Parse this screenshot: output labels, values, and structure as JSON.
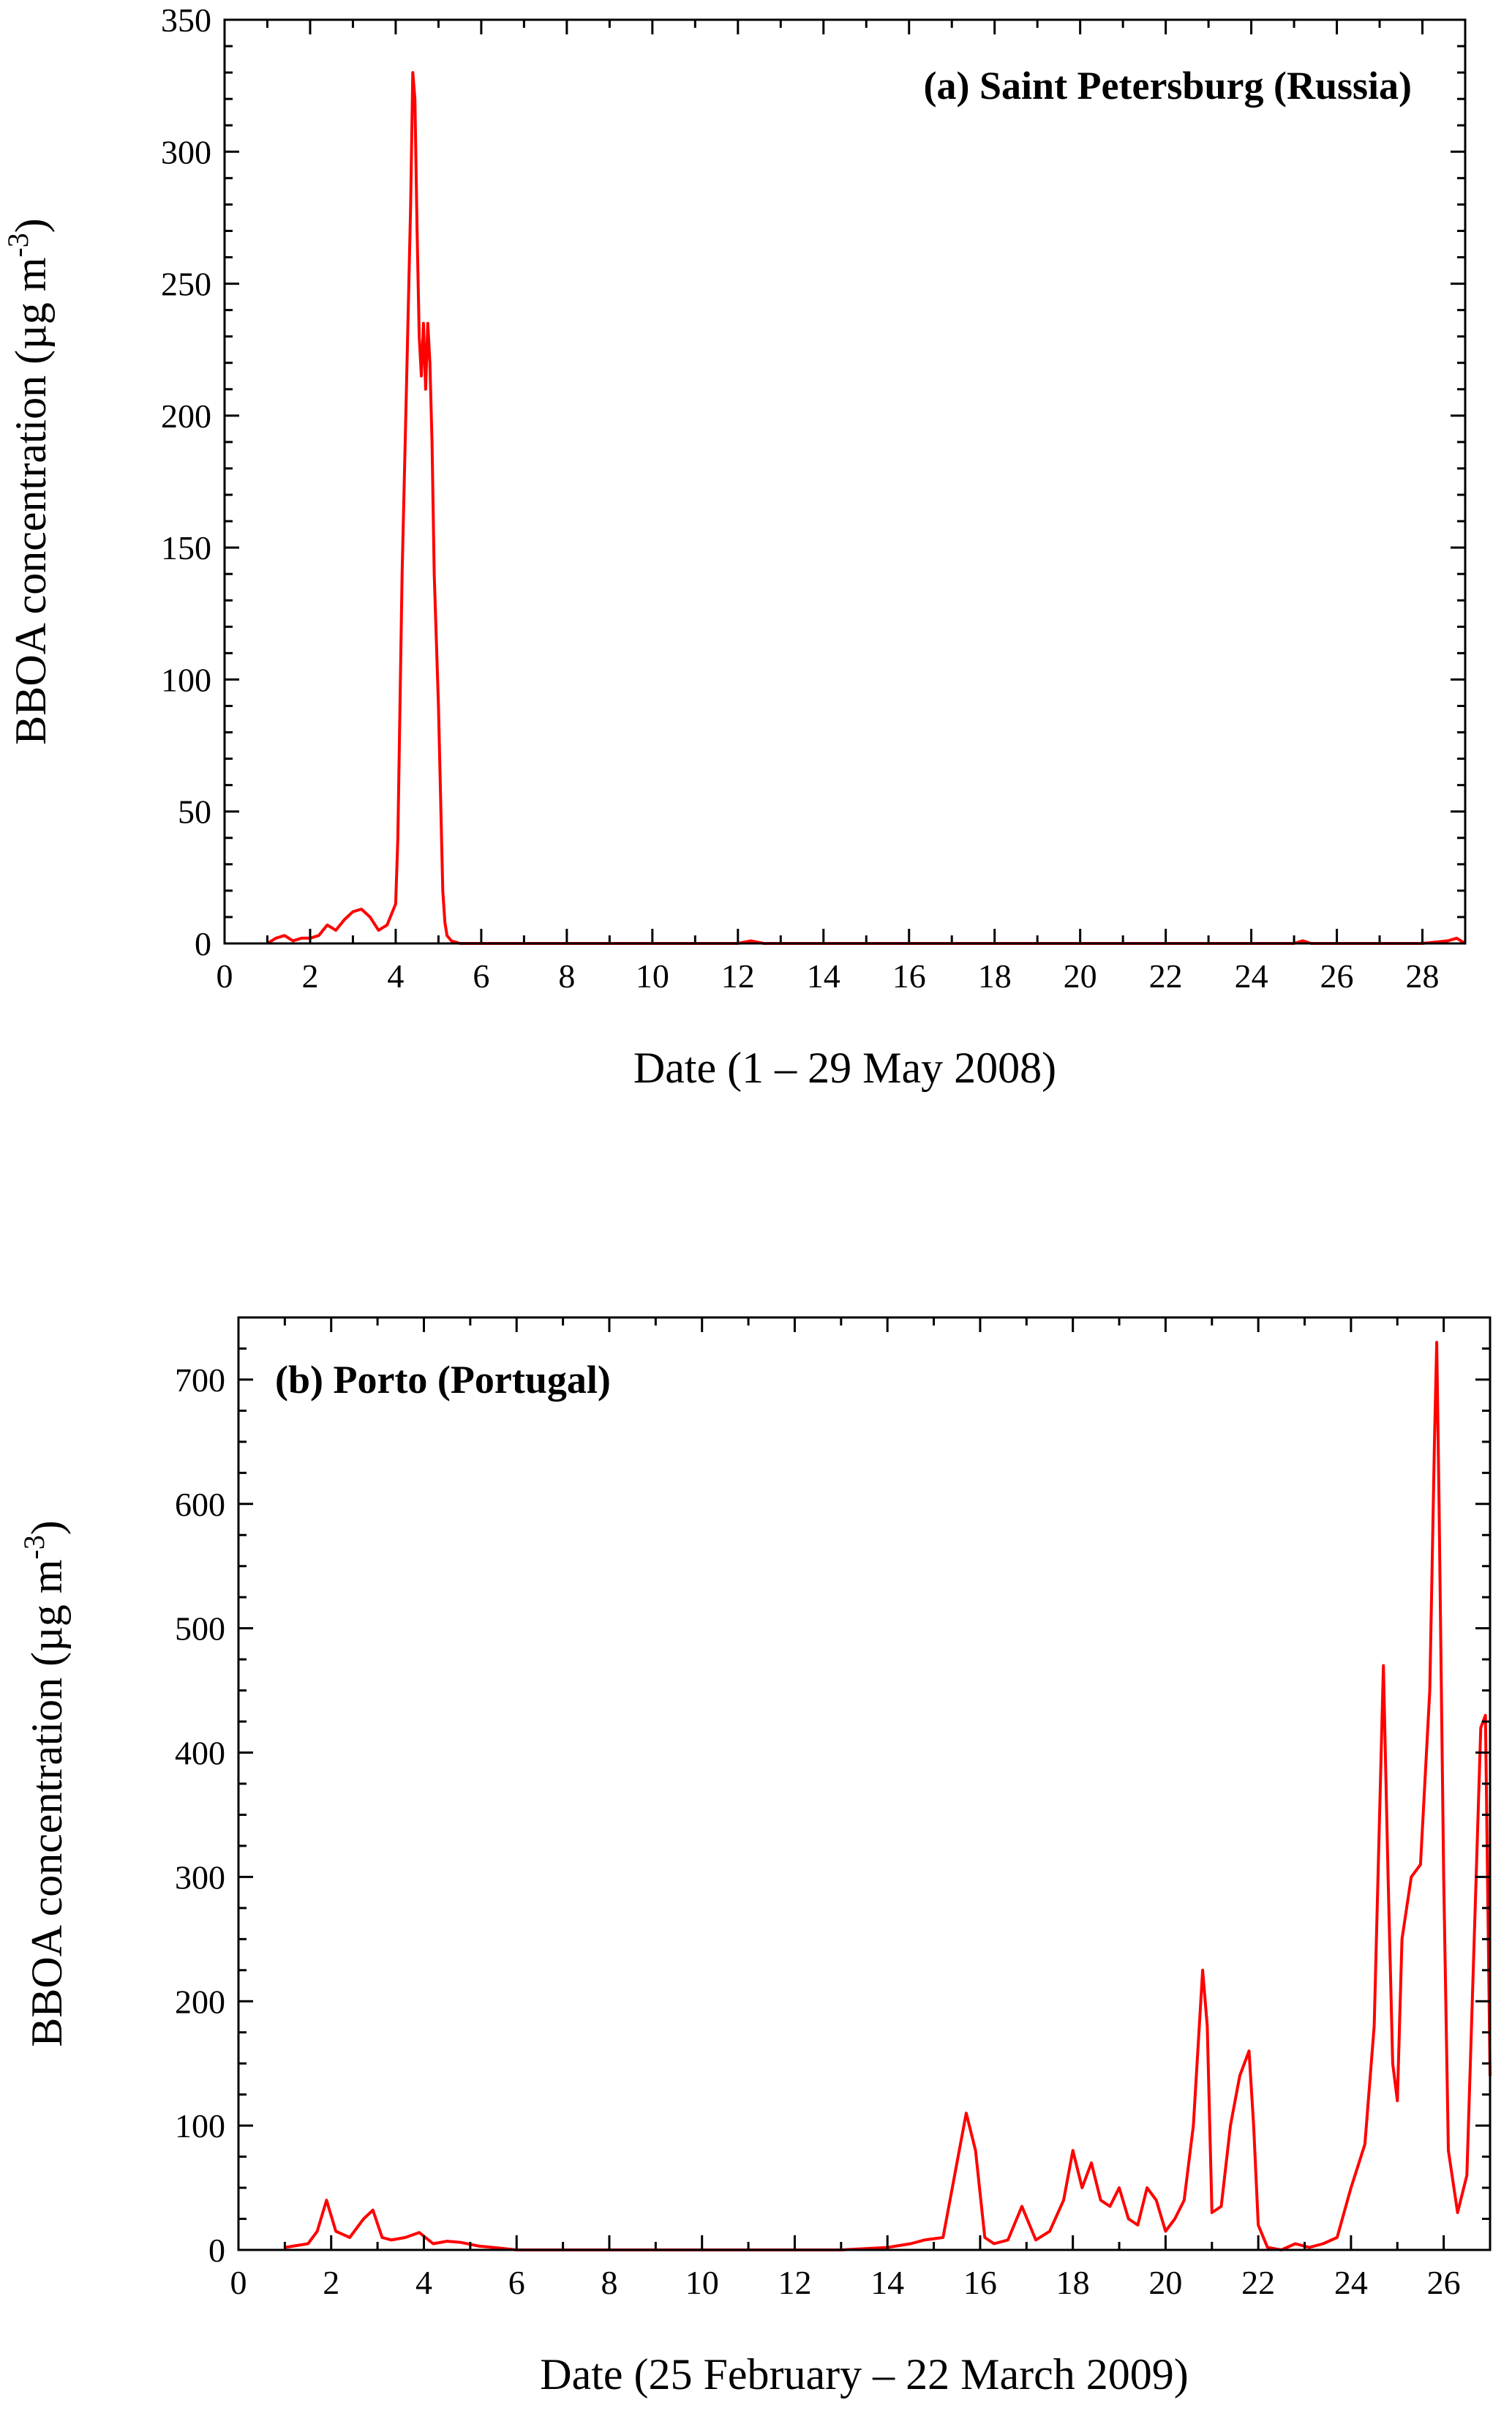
{
  "colors": {
    "series": "#ff0000",
    "axis": "#000000",
    "background": "#ffffff"
  },
  "chart_data": [
    {
      "type": "line",
      "title": "(a)  Saint Petersburg (Russia)",
      "xlabel": "Date (1 – 29 May 2008)",
      "ylabel_main": "BBOA concentration (µg  m",
      "ylabel_sup": "-3",
      "ylabel_close": ")",
      "xlim": [
        0,
        29
      ],
      "ylim": [
        0,
        350
      ],
      "x_ticks": [
        0,
        2,
        4,
        6,
        8,
        10,
        12,
        14,
        16,
        18,
        20,
        22,
        24,
        26,
        28
      ],
      "y_ticks": [
        0,
        50,
        100,
        150,
        200,
        250,
        300,
        350
      ],
      "grid": false,
      "series": [
        {
          "x": [
            1.0,
            1.2,
            1.4,
            1.6,
            1.8,
            2.0,
            2.2,
            2.4,
            2.6,
            2.8,
            3.0,
            3.2,
            3.4,
            3.6,
            3.8,
            4.0,
            4.05,
            4.15,
            4.25,
            4.35,
            4.4,
            4.45,
            4.5,
            4.55,
            4.6,
            4.65,
            4.7,
            4.75,
            4.8,
            4.85,
            4.9,
            5.0,
            5.1,
            5.15,
            5.2,
            5.3,
            5.5,
            6.0,
            7,
            8,
            9,
            10,
            11,
            12,
            12.3,
            12.6,
            13,
            14,
            15,
            16,
            17,
            18,
            19,
            20,
            21,
            22,
            23,
            24,
            25,
            25.2,
            25.4,
            26,
            27,
            28,
            28.6,
            28.8,
            29.0
          ],
          "y": [
            0,
            2,
            3,
            1,
            2,
            2,
            3,
            7,
            5,
            9,
            12,
            13,
            10,
            5,
            7,
            15,
            40,
            140,
            210,
            280,
            330,
            320,
            270,
            230,
            215,
            235,
            210,
            235,
            220,
            190,
            140,
            90,
            20,
            8,
            3,
            1,
            0,
            0,
            0,
            0,
            0,
            0,
            0,
            0,
            1,
            0,
            0,
            0,
            0,
            0,
            0,
            0,
            0,
            0,
            0,
            0,
            0,
            0,
            0,
            1,
            0,
            0,
            0,
            0,
            1,
            2,
            0
          ]
        }
      ]
    },
    {
      "type": "line",
      "title": "(b) Porto (Portugal)",
      "xlabel": "Date (25 February – 22 March 2009)",
      "ylabel_main": "BBOA concentration (µg  m",
      "ylabel_sup": "-3",
      "ylabel_close": ")",
      "xlim": [
        0,
        27
      ],
      "ylim": [
        0,
        750
      ],
      "x_ticks": [
        0,
        2,
        4,
        6,
        8,
        10,
        12,
        14,
        16,
        18,
        20,
        22,
        24,
        26
      ],
      "y_ticks": [
        0,
        100,
        200,
        300,
        400,
        500,
        600,
        700
      ],
      "grid": false,
      "series": [
        {
          "x": [
            1.0,
            1.5,
            1.7,
            1.9,
            2.1,
            2.4,
            2.7,
            2.9,
            3.1,
            3.3,
            3.6,
            3.9,
            4.2,
            4.5,
            4.8,
            5.2,
            5.5,
            6,
            7,
            8,
            9,
            10,
            11,
            12,
            13,
            14,
            14.5,
            14.8,
            15.2,
            15.5,
            15.7,
            15.9,
            16.1,
            16.3,
            16.6,
            16.9,
            17.2,
            17.5,
            17.8,
            18.0,
            18.2,
            18.4,
            18.6,
            18.8,
            19.0,
            19.2,
            19.4,
            19.6,
            19.8,
            20.0,
            20.2,
            20.4,
            20.6,
            20.8,
            20.9,
            21.0,
            21.2,
            21.4,
            21.6,
            21.8,
            21.9,
            22.0,
            22.2,
            22.5,
            22.8,
            23.1,
            23.4,
            23.7,
            24.0,
            24.3,
            24.5,
            24.7,
            24.8,
            24.9,
            25.0,
            25.1,
            25.3,
            25.5,
            25.7,
            25.8,
            25.85,
            25.9,
            26.0,
            26.1,
            26.3,
            26.5,
            26.7,
            26.8,
            26.9,
            27.0
          ],
          "y": [
            2,
            5,
            15,
            40,
            15,
            10,
            25,
            32,
            10,
            8,
            10,
            14,
            5,
            7,
            6,
            3,
            2,
            0,
            0,
            0,
            0,
            0,
            0,
            0,
            0,
            2,
            5,
            8,
            10,
            70,
            110,
            80,
            10,
            5,
            8,
            35,
            8,
            15,
            40,
            80,
            50,
            70,
            40,
            35,
            50,
            25,
            20,
            50,
            40,
            15,
            25,
            40,
            100,
            225,
            180,
            30,
            35,
            100,
            140,
            160,
            100,
            20,
            2,
            0,
            5,
            2,
            5,
            10,
            50,
            85,
            180,
            470,
            300,
            150,
            120,
            250,
            300,
            310,
            450,
            650,
            730,
            600,
            300,
            80,
            30,
            60,
            300,
            420,
            430,
            140
          ]
        }
      ]
    }
  ]
}
